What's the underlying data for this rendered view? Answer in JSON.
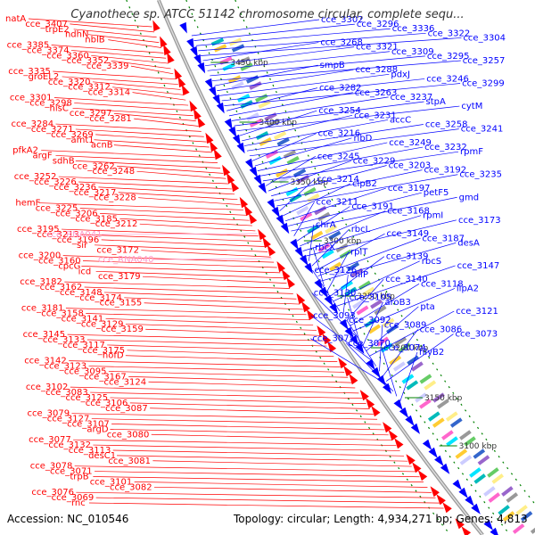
{
  "title": "Cyanothece sp. ATCC 51142 chromosome circular, complete sequ...",
  "footer": {
    "accession": "Accession: NC_010546",
    "topology": "Topology: circular; Length: 4,934,271 bp; Genes: 4,813"
  },
  "colors": {
    "forward": "#ff0000",
    "reverse": "#0000ff",
    "rna": "#ff99cc",
    "backbone": "#999999",
    "ticks": "#008000"
  },
  "scale_ticks": [
    {
      "label": "3450 kbp"
    },
    {
      "label": "3400 kbp"
    },
    {
      "label": "3350 kbp"
    },
    {
      "label": "3300 kbp"
    },
    {
      "label": "3250 kbp"
    },
    {
      "label": "3200 kbp"
    },
    {
      "label": "3150 kbp"
    },
    {
      "label": "3100 kbp"
    }
  ],
  "forward_labels": [
    {
      "text": "natA"
    },
    {
      "text": "cce_3407"
    },
    {
      "text": "trpE2"
    },
    {
      "text": "ndhN"
    },
    {
      "text": "nblB"
    },
    {
      "text": "cce_3385"
    },
    {
      "text": "cce_3374"
    },
    {
      "text": "cce_3360"
    },
    {
      "text": "cce_3352"
    },
    {
      "text": "cce_3339"
    },
    {
      "text": "cce_3335"
    },
    {
      "text": "groEL2"
    },
    {
      "text": "cce_3320"
    },
    {
      "text": "cce_3312"
    },
    {
      "text": "cce_3314"
    },
    {
      "text": "cce_3301"
    },
    {
      "text": "cce_3298"
    },
    {
      "text": "hisC"
    },
    {
      "text": "cce_3297"
    },
    {
      "text": "cce_3281"
    },
    {
      "text": "cce_3284"
    },
    {
      "text": "cce_3271"
    },
    {
      "text": "cce_3269"
    },
    {
      "text": "amt1"
    },
    {
      "text": "acnB"
    },
    {
      "text": "pfkA2"
    },
    {
      "text": "argF"
    },
    {
      "text": "sdhB"
    },
    {
      "text": "cce_3262"
    },
    {
      "text": "cce_3248"
    },
    {
      "text": "cce_3252"
    },
    {
      "text": "cce_3226"
    },
    {
      "text": "cce_3236"
    },
    {
      "text": "cce_3217"
    },
    {
      "text": "cce_3228"
    },
    {
      "text": "hemF"
    },
    {
      "text": "cce_3225"
    },
    {
      "text": "cce_3206"
    },
    {
      "text": "cce_3185"
    },
    {
      "text": "cce_3212"
    },
    {
      "text": "cce_3195"
    },
    {
      "text": "cce_3213"
    },
    {
      "text": "cce_3196"
    },
    {
      "text": "sir"
    },
    {
      "text": "cce_3172"
    },
    {
      "text": "cce_3200"
    },
    {
      "text": "cce_3160"
    },
    {
      "text": "cpcG"
    },
    {
      "text": "icd"
    },
    {
      "text": "cce_3179"
    },
    {
      "text": "cce_3182"
    },
    {
      "text": "cce_3162"
    },
    {
      "text": "cce_3148"
    },
    {
      "text": "cce_3174"
    },
    {
      "text": "cce_3155"
    },
    {
      "text": "cce_3181"
    },
    {
      "text": "cce_3158"
    },
    {
      "text": "cce_3141"
    },
    {
      "text": "cce_3129"
    },
    {
      "text": "cce_3159"
    },
    {
      "text": "cce_3145"
    },
    {
      "text": "cce_3133"
    },
    {
      "text": "cce_3117"
    },
    {
      "text": "cce_3175"
    },
    {
      "text": "hofD"
    },
    {
      "text": "cce_3142"
    },
    {
      "text": "cce_3123"
    },
    {
      "text": "cce_3095"
    },
    {
      "text": "cce_3167"
    },
    {
      "text": "cce_3124"
    },
    {
      "text": "cce_3102"
    },
    {
      "text": "cce_3083"
    },
    {
      "text": "cce_3125"
    },
    {
      "text": "cce_3106"
    },
    {
      "text": "cce_3087"
    },
    {
      "text": "cce_3079"
    },
    {
      "text": "cce_3127"
    },
    {
      "text": "cce_3107"
    },
    {
      "text": "argD"
    },
    {
      "text": "cce_3080"
    },
    {
      "text": "cce_3077"
    },
    {
      "text": "cce_3132"
    },
    {
      "text": "cce_3113"
    },
    {
      "text": "desC1"
    },
    {
      "text": "cce_3081"
    },
    {
      "text": "cce_3078"
    },
    {
      "text": "cce_3071"
    },
    {
      "text": "trpB"
    },
    {
      "text": "cce_3101"
    },
    {
      "text": "cce_3082"
    },
    {
      "text": "cce_3076"
    },
    {
      "text": "cce_3069"
    },
    {
      "text": "rnc"
    }
  ],
  "rna_labels": [
    {
      "text": "cce_RNA041"
    },
    {
      "text": "cce_RNA040"
    }
  ],
  "reverse_labels": [
    {
      "text": "cce_3302"
    },
    {
      "text": "cce_3296"
    },
    {
      "text": "cce_3336"
    },
    {
      "text": "cce_3322"
    },
    {
      "text": "cce_3304"
    },
    {
      "text": "cce_3268"
    },
    {
      "text": "cce_3321"
    },
    {
      "text": "cce_3309"
    },
    {
      "text": "cce_3295"
    },
    {
      "text": "cce_3257"
    },
    {
      "text": "smpB"
    },
    {
      "text": "cce_3288"
    },
    {
      "text": "pdxJ"
    },
    {
      "text": "cce_3246"
    },
    {
      "text": "cce_3299"
    },
    {
      "text": "cce_3282"
    },
    {
      "text": "cce_3263"
    },
    {
      "text": "cce_3237"
    },
    {
      "text": "stpA"
    },
    {
      "text": "cytM"
    },
    {
      "text": "cce_3254"
    },
    {
      "text": "cce_3231"
    },
    {
      "text": "accC"
    },
    {
      "text": "cce_3258"
    },
    {
      "text": "cce_3241"
    },
    {
      "text": "cce_3216"
    },
    {
      "text": "ribD"
    },
    {
      "text": "cce_3249"
    },
    {
      "text": "cce_3232"
    },
    {
      "text": "rpmF"
    },
    {
      "text": "cce_3245"
    },
    {
      "text": "cce_3229"
    },
    {
      "text": "cce_3203"
    },
    {
      "text": "cce_3192"
    },
    {
      "text": "cce_3235"
    },
    {
      "text": "cce_3214"
    },
    {
      "text": "clpB2"
    },
    {
      "text": "cce_3197"
    },
    {
      "text": "petF5"
    },
    {
      "text": "gmd"
    },
    {
      "text": "cce_3211"
    },
    {
      "text": "cce_3191"
    },
    {
      "text": "cce_3168"
    },
    {
      "text": "rpmI"
    },
    {
      "text": "cce_3173"
    },
    {
      "text": "chrA"
    },
    {
      "text": "rbcL"
    },
    {
      "text": "cce_3149"
    },
    {
      "text": "cce_3187"
    },
    {
      "text": "desA"
    },
    {
      "text": "rbcX"
    },
    {
      "text": "rplT"
    },
    {
      "text": "cce_3139"
    },
    {
      "text": "rbcS"
    },
    {
      "text": "cce_3147"
    },
    {
      "text": "cce_3126"
    },
    {
      "text": "chlP"
    },
    {
      "text": "cce_3140"
    },
    {
      "text": "cce_3118"
    },
    {
      "text": "lipA2"
    },
    {
      "text": "cce_3130"
    },
    {
      "text": "cce_3105"
    },
    {
      "text": "aroB3"
    },
    {
      "text": "pta"
    },
    {
      "text": "cce_3121"
    },
    {
      "text": "cce_3093"
    },
    {
      "text": "cce_3092"
    },
    {
      "text": "cce_3089"
    },
    {
      "text": "cce_3086"
    },
    {
      "text": "cce_3073"
    },
    {
      "text": "cce_3075"
    },
    {
      "text": "cce_3070"
    },
    {
      "text": "cce_3074"
    },
    {
      "text": "hlyB2"
    }
  ]
}
